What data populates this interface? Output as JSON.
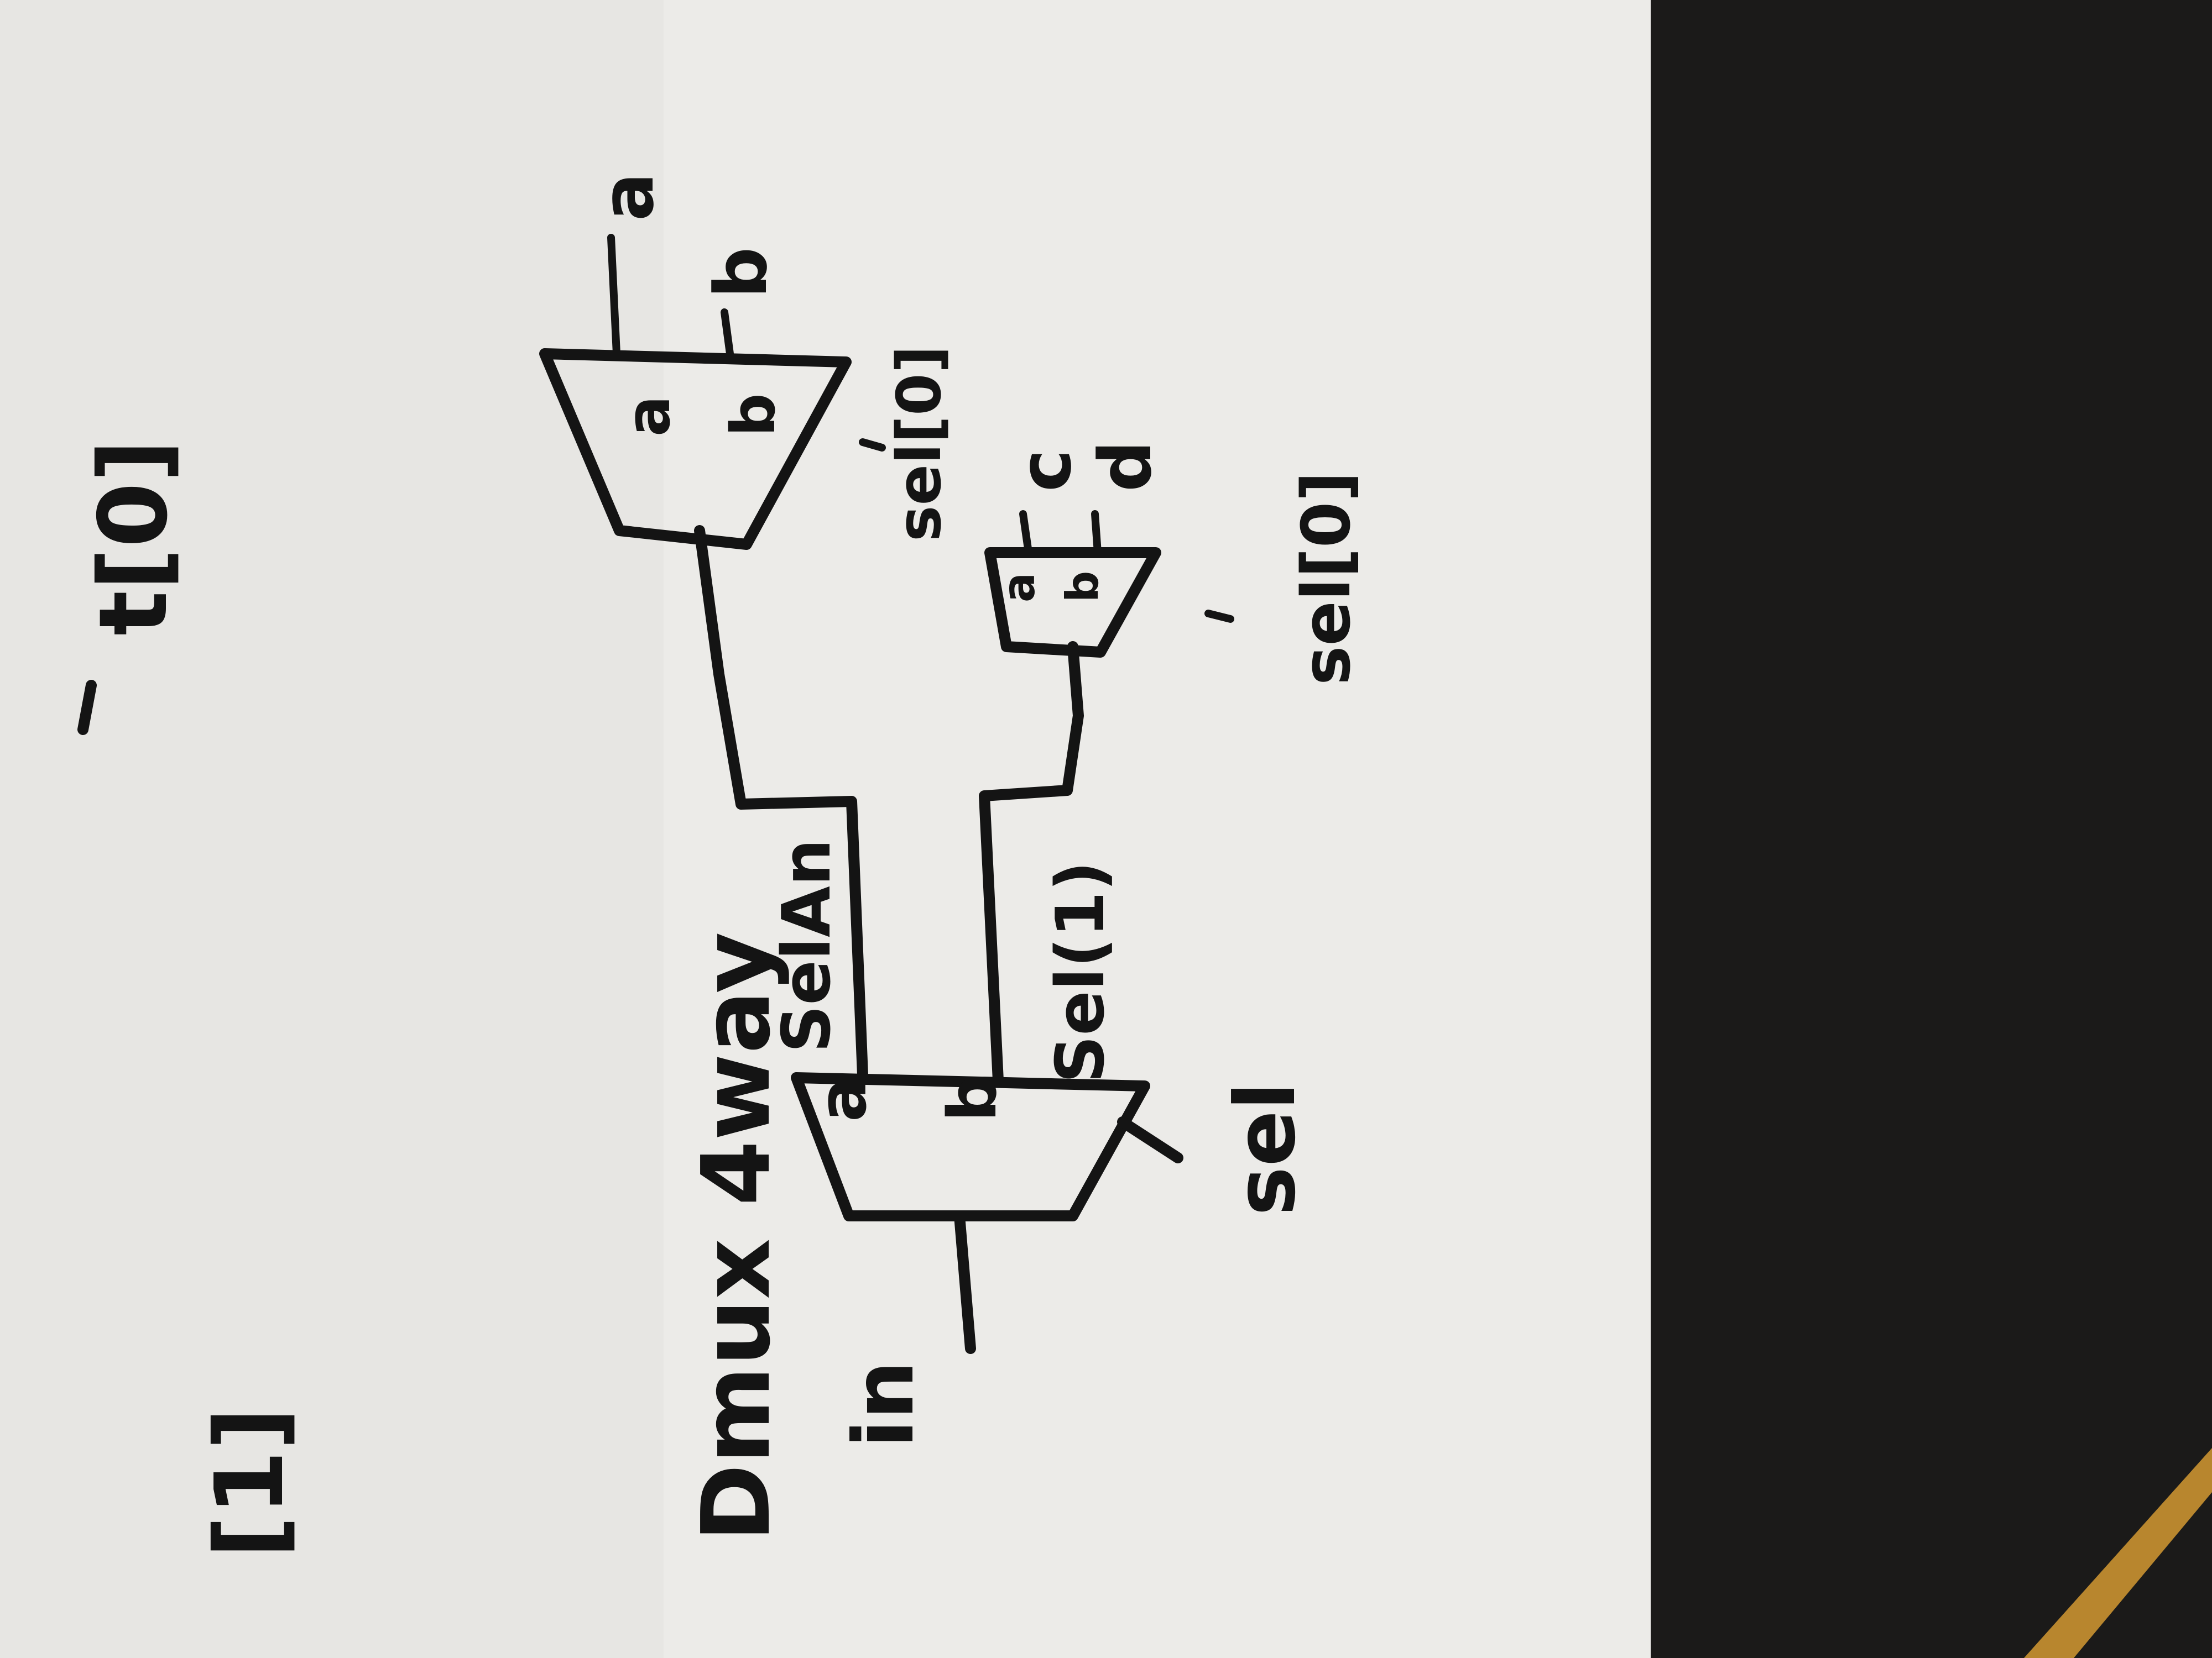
{
  "colors": {
    "paper": "#ecebe8",
    "ink": "#141414",
    "background": "#1b1a19",
    "accent_stripe": "#b8862e"
  },
  "diagram": {
    "title": "Dmux 4way",
    "input_label": "in",
    "main_select_label": "sel",
    "wire_labels": {
      "upper": "SelAn",
      "lower": "Sel(1)"
    },
    "main_mux": {
      "port_a": "a",
      "port_b": "b"
    },
    "upper_mux": {
      "port_a": "a",
      "port_b": "b",
      "output_a": "a",
      "output_b": "b",
      "select_label": "sel[0]"
    },
    "lower_mux": {
      "port_a": "a",
      "port_b": "b",
      "output_a": "c",
      "output_b": "d",
      "select_label": "sel[0]"
    }
  },
  "margin_notes": {
    "top_note": "t[0]",
    "bottom_note": "[1]"
  }
}
